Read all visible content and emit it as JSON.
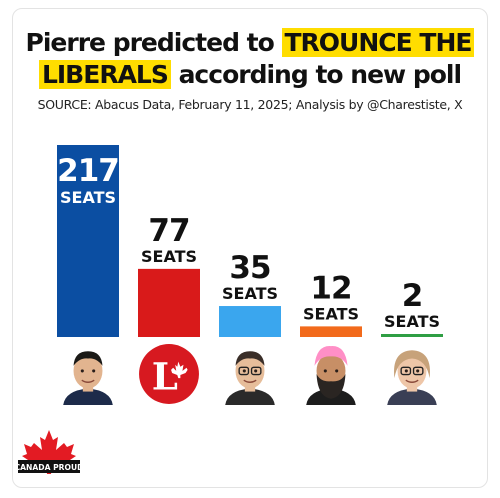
{
  "headline": {
    "part1": "Pierre predicted to ",
    "highlight1": "TROUNCE THE",
    "highlight2": "LIBERALS",
    "part2": " according to new poll"
  },
  "source": "SOURCE: Abacus Data, February 11, 2025; Analysis by @Charestiste, X",
  "chart_data": {
    "type": "bar",
    "categories": [
      "",
      "",
      "",
      "",
      ""
    ],
    "values": [
      217,
      77,
      35,
      12,
      2
    ],
    "value_labels": [
      "217",
      "77",
      "35",
      "12",
      "2"
    ],
    "unit_label": "SEATS",
    "colors": [
      "#0b4ea2",
      "#d91a1a",
      "#3aa6ee",
      "#f26a1b",
      "#2f9e44"
    ],
    "ylim": [
      0,
      217
    ],
    "grid": false,
    "legend": "none",
    "xlabel": "",
    "ylabel": ""
  },
  "portraits": [
    {
      "icon": "conservative-leader-portrait-icon",
      "skin": "#e2b48f",
      "hair": "#1b1a17",
      "shirt": "#1d2b4a"
    },
    {
      "icon": "liberal-party-logo-icon",
      "bg": "#d71920",
      "fg": "#ffffff"
    },
    {
      "icon": "bloc-leader-portrait-icon",
      "skin": "#e6bd9a",
      "hair": "#3a2e28",
      "shirt": "#2a2a2a"
    },
    {
      "icon": "ndp-leader-portrait-icon",
      "skin": "#c78f66",
      "turban": "#ff8fc6",
      "beard": "#2a2522",
      "shirt": "#1d1d1d"
    },
    {
      "icon": "green-leader-portrait-icon",
      "skin": "#eec6a8",
      "hair": "#c7a27a",
      "shirt": "#3a3f55"
    }
  ],
  "brand": {
    "icon": "maple-leaf-icon",
    "label": "CANADA PROUD",
    "leaf_color": "#e31b23",
    "label_bg": "#111111"
  }
}
